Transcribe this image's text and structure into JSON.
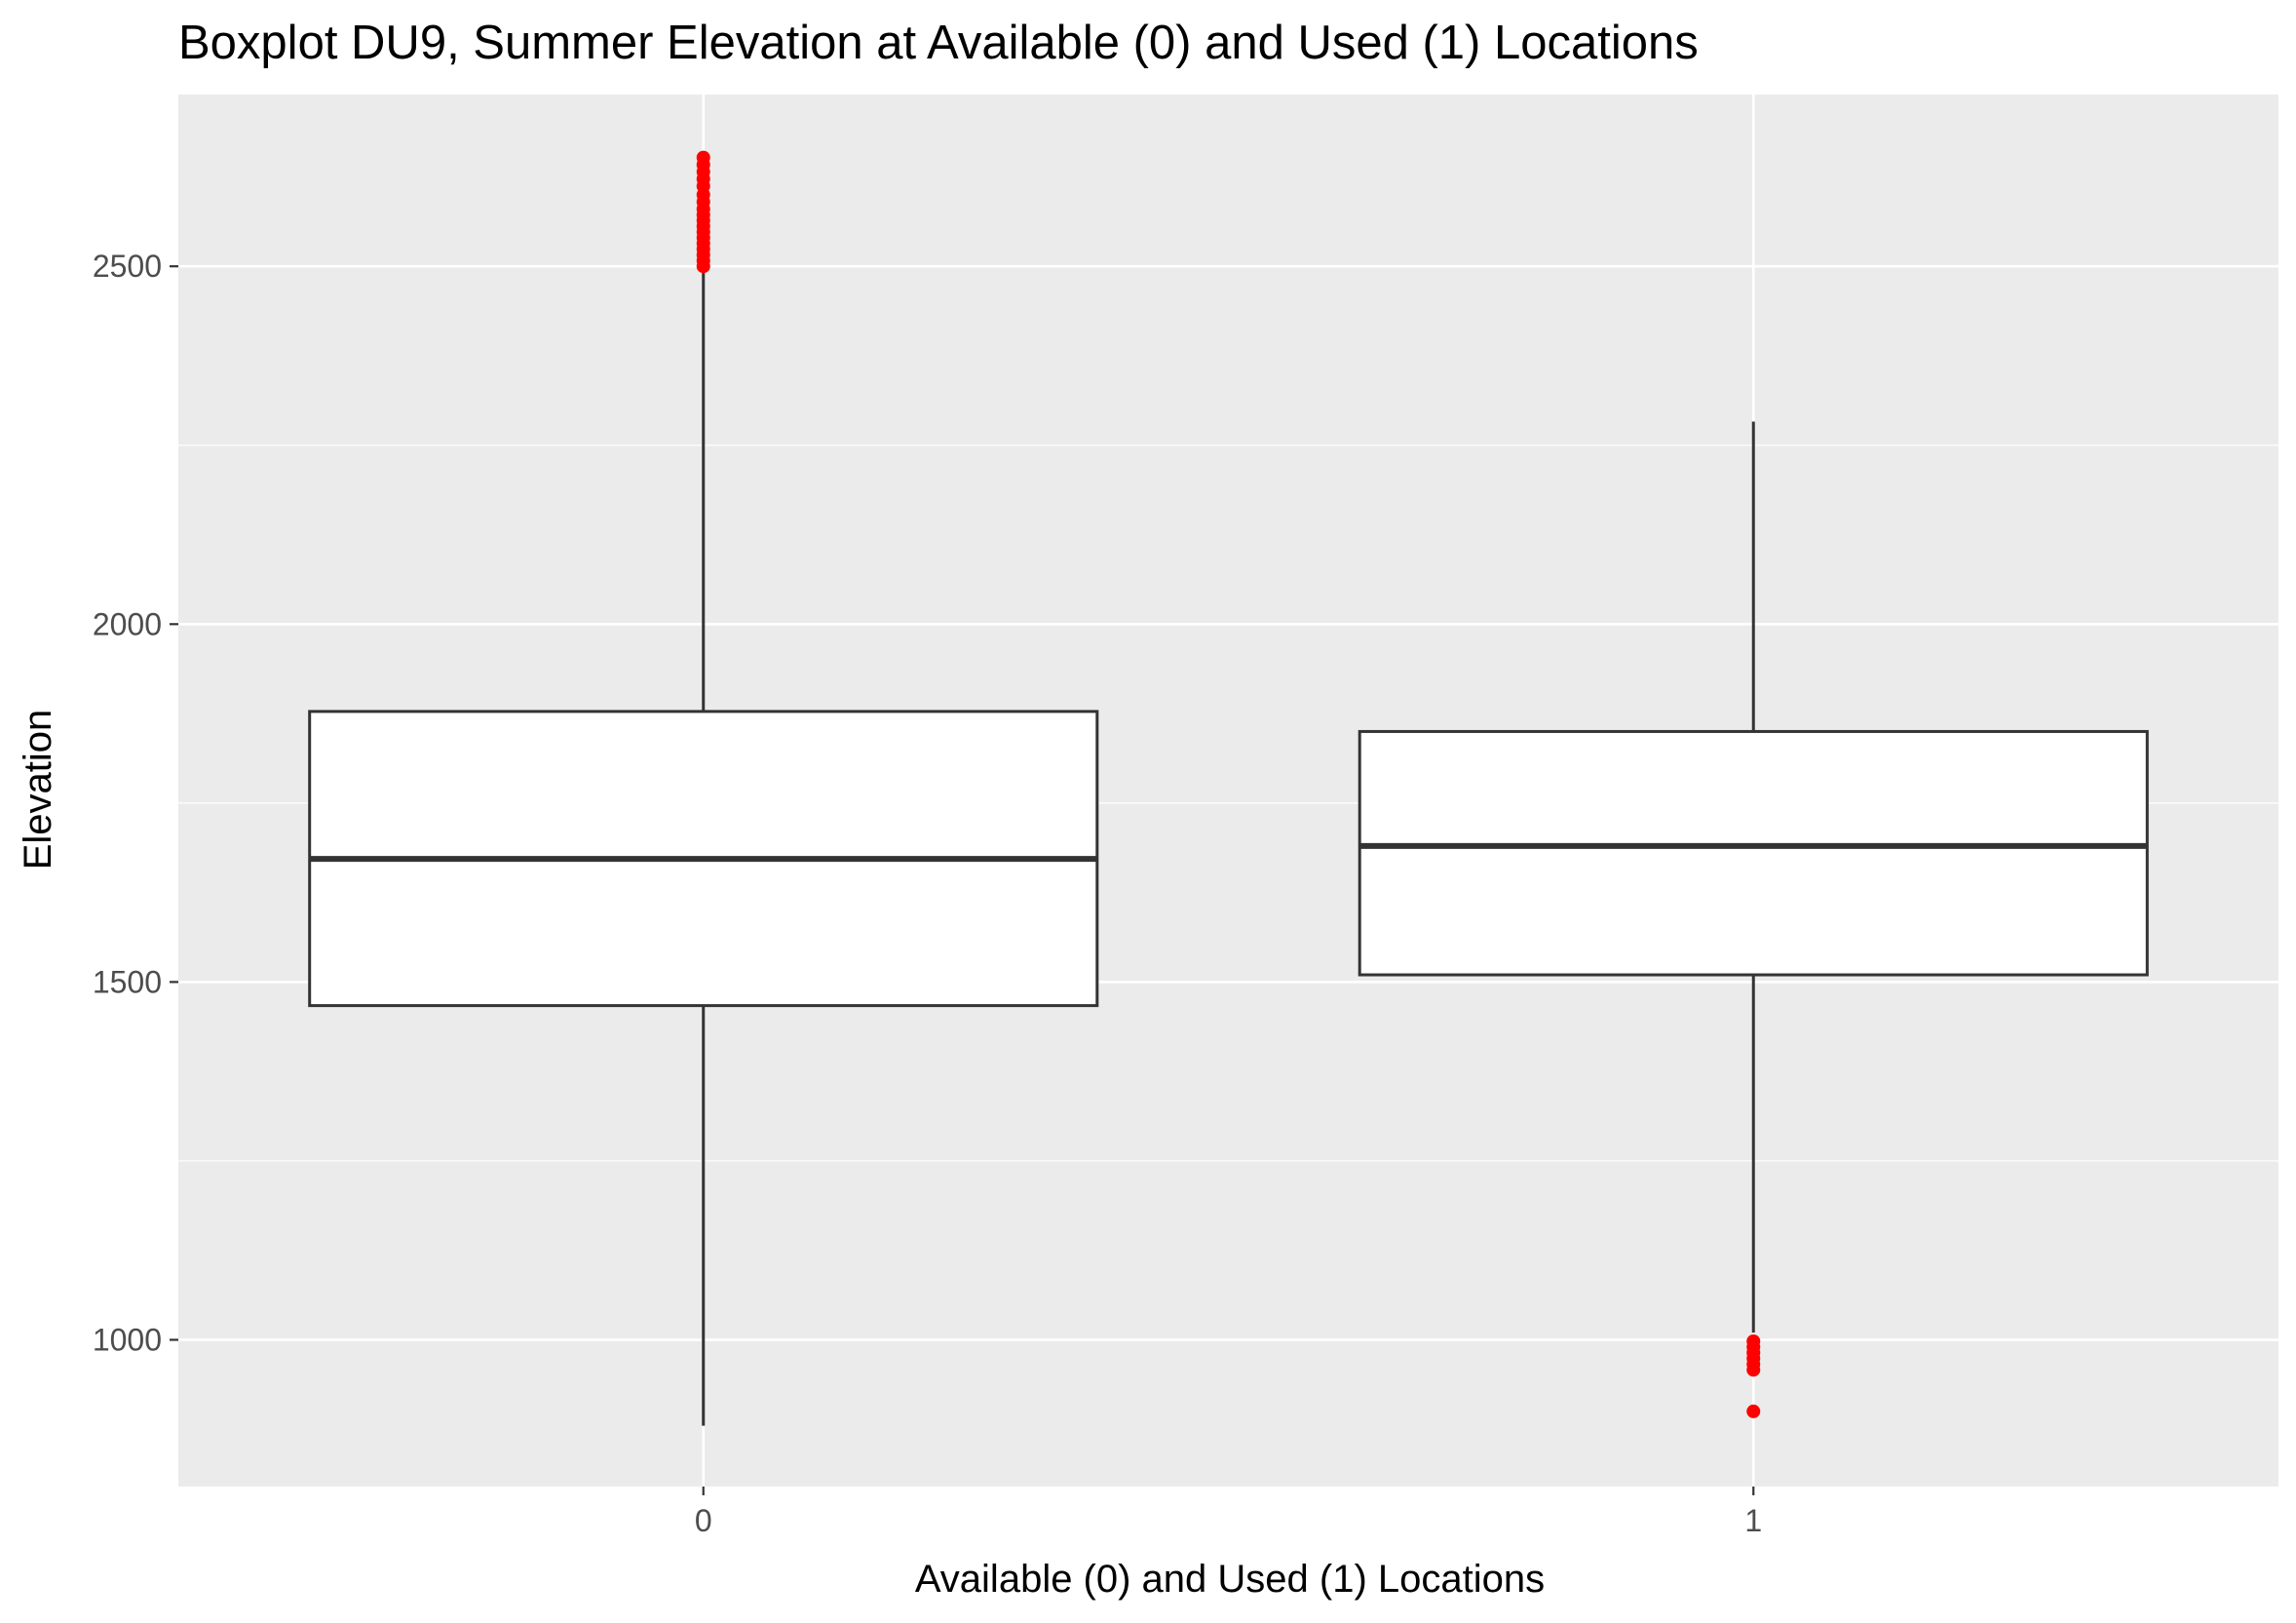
{
  "chart_data": {
    "type": "boxplot",
    "title": "Boxplot DU9, Summer Elevation at Available (0) and Used (1) Locations",
    "xlabel": "Available (0) and Used (1) Locations",
    "ylabel": "Elevation",
    "categories": [
      "0",
      "1"
    ],
    "ylim": [
      795,
      2740
    ],
    "yticks": [
      1000,
      1500,
      2000,
      2500
    ],
    "grid": true,
    "colors": {
      "panel_background": "#ebebeb",
      "grid": "#ffffff",
      "box_fill": "#ffffff",
      "box_line": "#333333",
      "outlier": "#ff0000",
      "tick_label": "#4d4d4d"
    },
    "boxes": [
      {
        "category": "0",
        "whisker_low": 880,
        "q1": 1467,
        "median": 1672,
        "q3": 1878,
        "whisker_high": 2497,
        "outliers": [
          2500,
          2508,
          2516,
          2524,
          2532,
          2540,
          2548,
          2556,
          2564,
          2572,
          2580,
          2590,
          2600,
          2612,
          2622,
          2632,
          2642,
          2652
        ]
      },
      {
        "category": "1",
        "whisker_low": 1010,
        "q1": 1510,
        "median": 1690,
        "q3": 1850,
        "whisker_high": 2283,
        "outliers": [
          998,
          990,
          982,
          974,
          966,
          958,
          900
        ]
      }
    ]
  }
}
